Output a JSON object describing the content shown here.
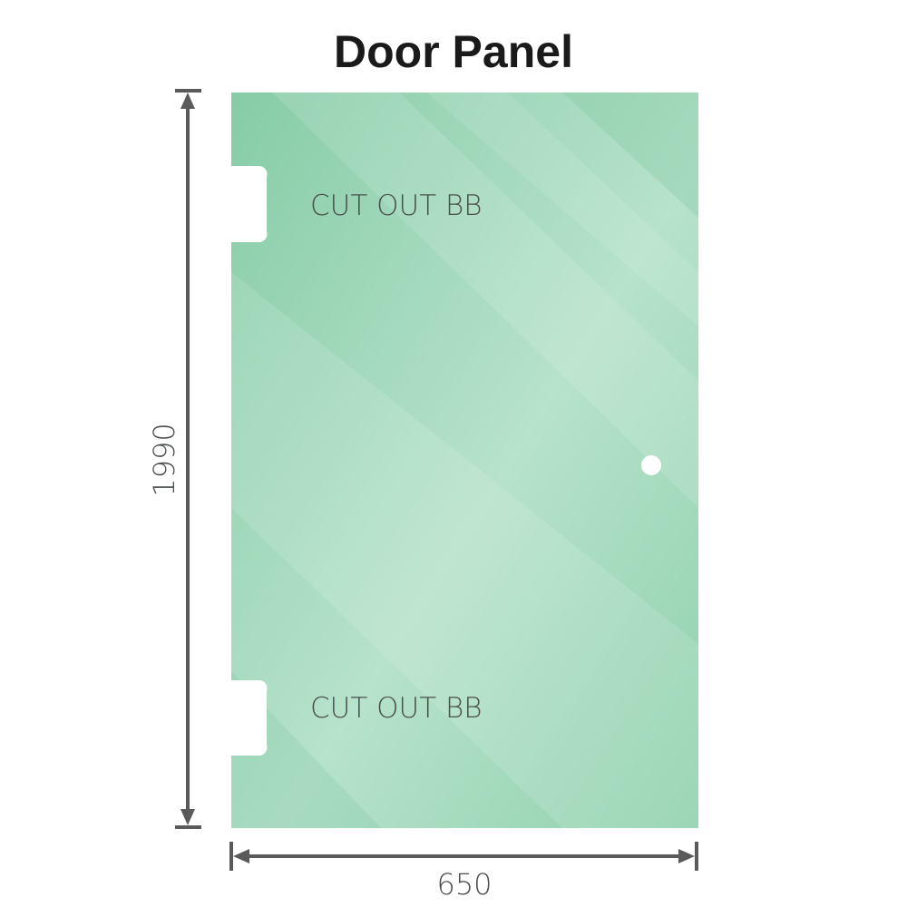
{
  "title": "Door Panel",
  "panel": {
    "cutout_top_label": "CUT OUT BB",
    "cutout_bottom_label": "CUT OUT BB",
    "glass_color": "#8fd0ad"
  },
  "dimensions": {
    "height": "1990",
    "width": "650",
    "line_color": "#5a5a5a"
  }
}
